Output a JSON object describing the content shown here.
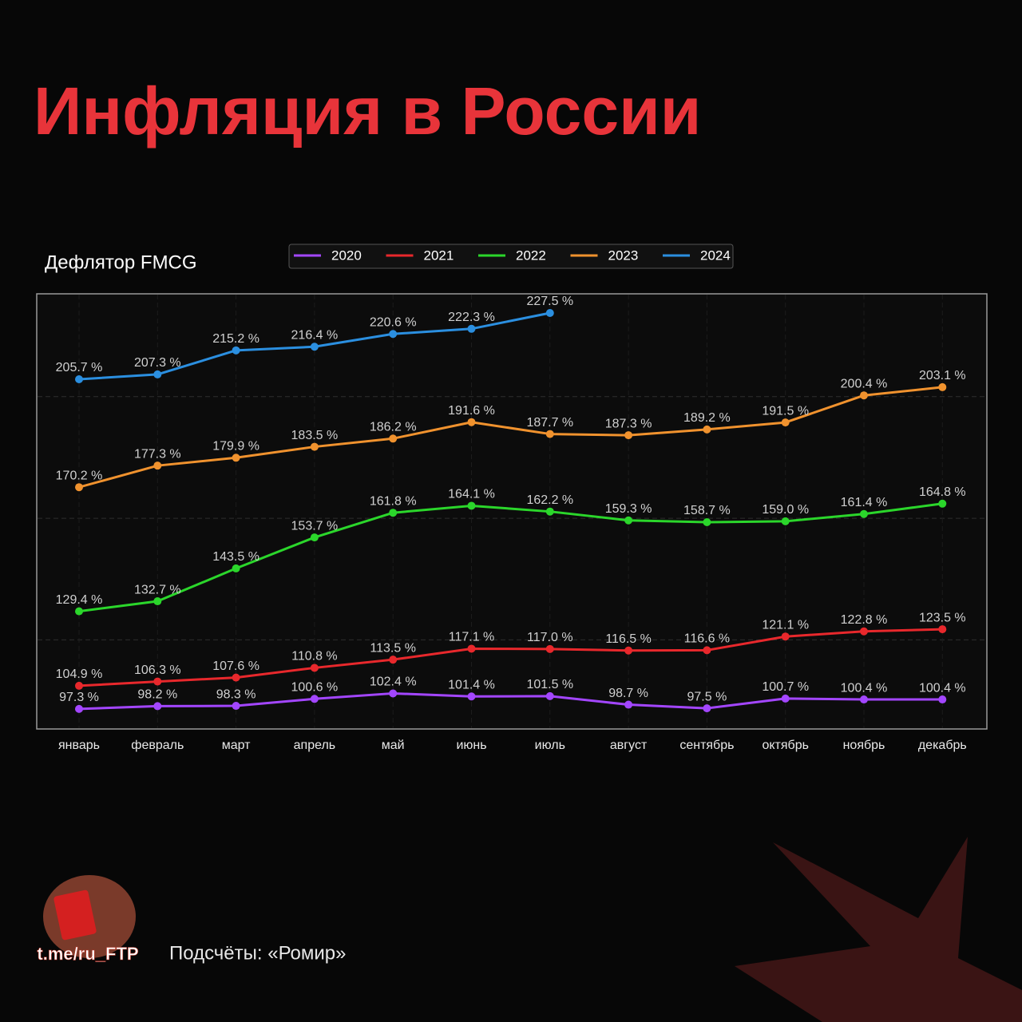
{
  "chart_data": {
    "type": "line",
    "title": "Инфляция в России",
    "subtitle": "Дефлятор FMCG",
    "categories": [
      "январь",
      "февраль",
      "март",
      "апрель",
      "май",
      "июнь",
      "июль",
      "август",
      "сентябрь",
      "октябрь",
      "ноябрь",
      "декабрь"
    ],
    "series": [
      {
        "name": "2020",
        "color": "#a346ff",
        "values": [
          97.3,
          98.2,
          98.3,
          100.6,
          102.4,
          101.4,
          101.5,
          98.7,
          97.5,
          100.7,
          100.4,
          100.4
        ],
        "value_labels": [
          "97.3 %",
          "98.2 %",
          "98.3 %",
          "100.6 %",
          "102.4 %",
          "101.4 %",
          "101.5 %",
          "98.7 %",
          "97.5 %",
          "100.7 %",
          "100.4 %",
          "100.4 %"
        ]
      },
      {
        "name": "2021",
        "color": "#e8282c",
        "values": [
          104.9,
          106.3,
          107.6,
          110.8,
          113.5,
          117.1,
          117,
          116.5,
          116.6,
          121.1,
          122.8,
          123.5
        ],
        "value_labels": [
          "104.9 %",
          "106.3 %",
          "107.6 %",
          "110.8 %",
          "113.5 %",
          "117.1 %",
          "117.0 %",
          "116.5 %",
          "116.6 %",
          "121.1 %",
          "122.8 %",
          "123.5 %"
        ]
      },
      {
        "name": "2022",
        "color": "#2bd62b",
        "values": [
          129.4,
          132.7,
          143.5,
          153.7,
          161.8,
          164.1,
          162.2,
          159.3,
          158.7,
          159,
          161.4,
          164.8
        ],
        "value_labels": [
          "129.4 %",
          "132.7 %",
          "143.5 %",
          "153.7 %",
          "161.8 %",
          "164.1 %",
          "162.2 %",
          "159.3 %",
          "158.7 %",
          "159.0 %",
          "161.4 %",
          "164.8 %"
        ]
      },
      {
        "name": "2023",
        "color": "#f0922e",
        "values": [
          170.2,
          177.3,
          179.9,
          183.5,
          186.2,
          191.6,
          187.7,
          187.3,
          189.2,
          191.5,
          200.4,
          203.1
        ],
        "value_labels": [
          "170.2 %",
          "177.3 %",
          "179.9 %",
          "183.5 %",
          "186.2 %",
          "191.6 %",
          "187.7 %",
          "187.3 %",
          "189.2 %",
          "191.5 %",
          "200.4 %",
          "203.1 %"
        ]
      },
      {
        "name": "2024",
        "color": "#2b8fe0",
        "values": [
          205.7,
          207.3,
          215.2,
          216.4,
          220.6,
          222.3,
          227.5,
          null,
          null,
          null,
          null,
          null
        ],
        "value_labels": [
          "205.7 %",
          "207.3 %",
          "215.2 %",
          "216.4 %",
          "220.6 %",
          "222.3 %",
          "227.5 %",
          null,
          null,
          null,
          null,
          null
        ]
      }
    ],
    "ylim": [
      90.7,
      233.8
    ],
    "yticks": [
      120,
      160,
      200
    ],
    "grid": true,
    "legend": "top"
  },
  "footer": {
    "source": "Подсчёты: «Ромир»",
    "logo_text": "t.me/ru_FTP"
  }
}
